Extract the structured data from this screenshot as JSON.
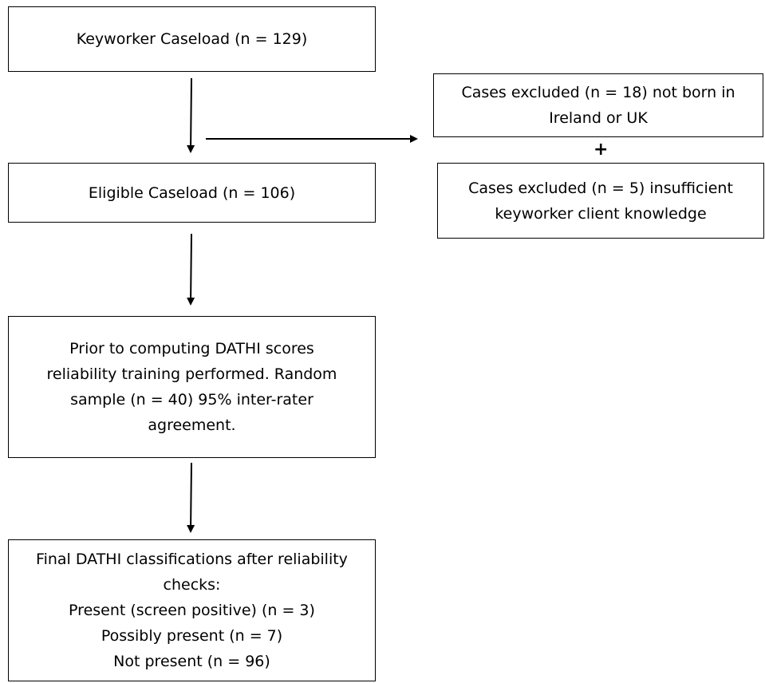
{
  "boxes": {
    "keyworker": {
      "lines": [
        "Keyworker Caseload (n = 129)"
      ]
    },
    "eligible": {
      "lines": [
        "Eligible Caseload (n = 106)"
      ]
    },
    "prior": {
      "lines": [
        "Prior to computing DATHI scores",
        "reliability training performed. Random",
        "sample (n = 40) 95% inter-rater",
        "agreement."
      ]
    },
    "final": {
      "lines": [
        "Final DATHI classifications after reliability",
        "checks:",
        "Present (screen positive) (n = 3)",
        "Possibly present (n = 7)",
        "Not present (n = 96)"
      ]
    },
    "excluded_born": {
      "lines": [
        "Cases excluded (n = 18) not born in",
        "Ireland or UK"
      ]
    },
    "excluded_knowledge": {
      "lines": [
        "Cases excluded (n = 5) insufficient",
        "keyworker client knowledge"
      ]
    }
  },
  "plus_sign": "+"
}
